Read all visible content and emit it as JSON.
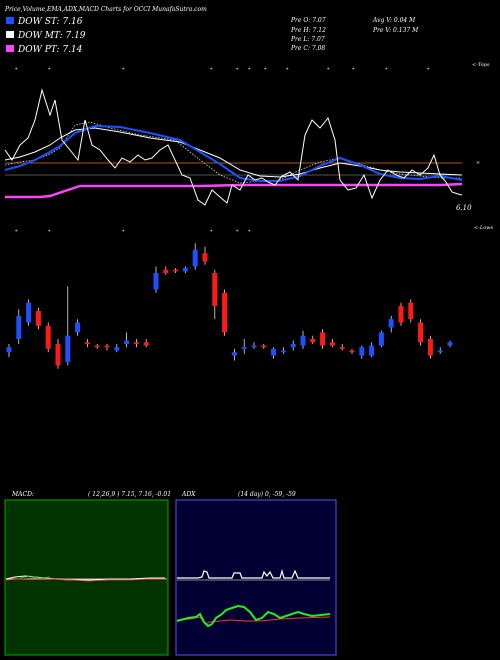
{
  "header": {
    "title": "Price,Volume,EMA,ADX,MACD Charts for OCCI MunafaSutra.com",
    "ohlc_left": [
      {
        "label": "Pre",
        "key": "O",
        "value": "7.07"
      },
      {
        "label": "Pre",
        "key": "H",
        "value": "7.12"
      },
      {
        "label": "Pre",
        "key": "L",
        "value": "7.07"
      },
      {
        "label": "Pre",
        "key": "C",
        "value": "7.08"
      }
    ],
    "avg_volume": "Avg V: 0.04  M",
    "pre_volume": "Pre   V: 0.137 M"
  },
  "legend": [
    {
      "label": "DOW ST: 7.16",
      "color": "#1e50ff"
    },
    {
      "label": "DOW MT: 7.19",
      "color": "#ffffff"
    },
    {
      "label": "DOW PT: 7.14",
      "color": "#ff44ff"
    }
  ],
  "labels": {
    "tops": "<-Tops",
    "lows": "<-Lows",
    "last_price": "6.10"
  },
  "macd": {
    "label": "MACD:",
    "params": "( 12,26,9 ) 7.15, 7.16, -0.01",
    "bg": "#003300",
    "border": "#00aa00"
  },
  "adx": {
    "label": "ADX",
    "params": "(14  day) 0, -59, -59",
    "bg": "#000033",
    "border": "#5555ff"
  },
  "chart_data": {
    "type": "candlestick",
    "title": "Price,Volume,EMA,ADX,MACD Charts for OCCI MunafaSutra.com",
    "series": [
      {
        "name": "DOW ST",
        "value": 7.16
      },
      {
        "name": "DOW MT",
        "value": 7.19
      },
      {
        "name": "DOW PT",
        "value": 7.14
      }
    ],
    "last_close_label": 6.1,
    "candles": [
      {
        "o": 7.0,
        "c": 7.03,
        "h": 7.05,
        "l": 6.97,
        "up": true
      },
      {
        "o": 7.08,
        "c": 7.22,
        "h": 7.26,
        "l": 7.05,
        "up": true
      },
      {
        "o": 7.18,
        "c": 7.3,
        "h": 7.32,
        "l": 7.16,
        "up": true
      },
      {
        "o": 7.25,
        "c": 7.16,
        "h": 7.27,
        "l": 7.14,
        "up": false
      },
      {
        "o": 7.16,
        "c": 7.02,
        "h": 7.18,
        "l": 7.0,
        "up": false
      },
      {
        "o": 7.05,
        "c": 6.92,
        "h": 7.08,
        "l": 6.9,
        "up": false
      },
      {
        "o": 6.94,
        "c": 7.1,
        "h": 7.4,
        "l": 6.92,
        "up": true
      },
      {
        "o": 7.12,
        "c": 7.18,
        "h": 7.2,
        "l": 7.1,
        "up": true
      },
      {
        "o": 7.06,
        "c": 7.05,
        "h": 7.08,
        "l": 7.03,
        "up": false
      },
      {
        "o": 7.04,
        "c": 7.03,
        "h": 7.05,
        "l": 7.02,
        "up": false
      },
      {
        "o": 7.04,
        "c": 7.03,
        "h": 7.05,
        "l": 7.01,
        "up": false
      },
      {
        "o": 7.01,
        "c": 7.03,
        "h": 7.05,
        "l": 7.0,
        "up": true
      },
      {
        "o": 7.05,
        "c": 7.07,
        "h": 7.12,
        "l": 7.03,
        "up": true
      },
      {
        "o": 7.06,
        "c": 7.05,
        "h": 7.08,
        "l": 7.03,
        "up": false
      },
      {
        "o": 7.06,
        "c": 7.04,
        "h": 7.08,
        "l": 7.03,
        "up": false
      },
      {
        "o": 7.38,
        "c": 7.48,
        "h": 7.52,
        "l": 7.36,
        "up": true
      },
      {
        "o": 7.5,
        "c": 7.48,
        "h": 7.52,
        "l": 7.47,
        "up": false
      },
      {
        "o": 7.5,
        "c": 7.49,
        "h": 7.51,
        "l": 7.48,
        "up": false
      },
      {
        "o": 7.49,
        "c": 7.51,
        "h": 7.52,
        "l": 7.48,
        "up": true
      },
      {
        "o": 7.52,
        "c": 7.62,
        "h": 7.66,
        "l": 7.5,
        "up": true
      },
      {
        "o": 7.6,
        "c": 7.55,
        "h": 7.64,
        "l": 7.53,
        "up": false
      },
      {
        "o": 7.48,
        "c": 7.28,
        "h": 7.5,
        "l": 7.2,
        "up": false
      },
      {
        "o": 7.36,
        "c": 7.12,
        "h": 7.38,
        "l": 7.1,
        "up": false
      },
      {
        "o": 6.98,
        "c": 7.0,
        "h": 7.02,
        "l": 6.95,
        "up": true
      },
      {
        "o": 7.02,
        "c": 7.03,
        "h": 7.08,
        "l": 6.99,
        "up": true
      },
      {
        "o": 7.03,
        "c": 7.04,
        "h": 7.06,
        "l": 7.02,
        "up": true
      },
      {
        "o": 7.04,
        "c": 7.03,
        "h": 7.05,
        "l": 7.02,
        "up": false
      },
      {
        "o": 6.98,
        "c": 7.02,
        "h": 7.03,
        "l": 6.96,
        "up": true
      },
      {
        "o": 7.0,
        "c": 7.01,
        "h": 7.03,
        "l": 6.99,
        "up": true
      },
      {
        "o": 7.03,
        "c": 7.05,
        "h": 7.07,
        "l": 7.01,
        "up": true
      },
      {
        "o": 7.04,
        "c": 7.1,
        "h": 7.13,
        "l": 7.02,
        "up": true
      },
      {
        "o": 7.08,
        "c": 7.06,
        "h": 7.1,
        "l": 7.05,
        "up": false
      },
      {
        "o": 7.12,
        "c": 7.04,
        "h": 7.14,
        "l": 7.02,
        "up": false
      },
      {
        "o": 7.06,
        "c": 7.04,
        "h": 7.08,
        "l": 7.03,
        "up": false
      },
      {
        "o": 7.03,
        "c": 7.02,
        "h": 7.05,
        "l": 7.01,
        "up": false
      },
      {
        "o": 7.01,
        "c": 7.0,
        "h": 7.02,
        "l": 6.99,
        "up": false
      },
      {
        "o": 6.98,
        "c": 7.03,
        "h": 7.04,
        "l": 6.96,
        "up": true
      },
      {
        "o": 6.98,
        "c": 7.04,
        "h": 7.06,
        "l": 6.97,
        "up": true
      },
      {
        "o": 7.04,
        "c": 7.12,
        "h": 7.13,
        "l": 7.03,
        "up": true
      },
      {
        "o": 7.15,
        "c": 7.2,
        "h": 7.22,
        "l": 7.12,
        "up": true
      },
      {
        "o": 7.28,
        "c": 7.18,
        "h": 7.3,
        "l": 7.16,
        "up": false
      },
      {
        "o": 7.3,
        "c": 7.2,
        "h": 7.32,
        "l": 7.18,
        "up": false
      },
      {
        "o": 7.18,
        "c": 7.06,
        "h": 7.2,
        "l": 7.04,
        "up": false
      },
      {
        "o": 7.08,
        "c": 6.98,
        "h": 7.1,
        "l": 6.96,
        "up": false
      },
      {
        "o": 7.0,
        "c": 7.01,
        "h": 7.03,
        "l": 6.99,
        "up": true
      },
      {
        "o": 7.04,
        "c": 7.06,
        "h": 7.07,
        "l": 7.03,
        "up": true
      }
    ]
  }
}
